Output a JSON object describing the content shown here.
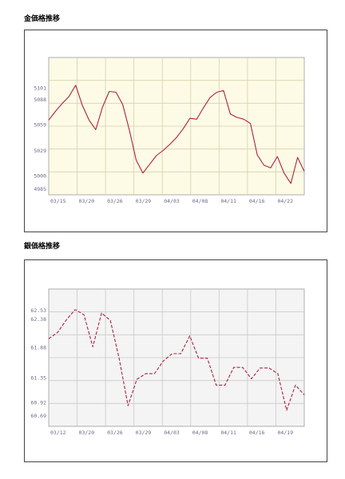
{
  "chart_data": [
    {
      "type": "line",
      "title": "金価格推移",
      "xlabel": "",
      "ylabel": "",
      "x_tick_labels": [
        "03/15",
        "03/20",
        "03/26",
        "03/29",
        "04/03",
        "04/08",
        "04/11",
        "04/16",
        "04/22"
      ],
      "y_ticks": [
        4985,
        5000,
        5029,
        5059,
        5088,
        5101
      ],
      "ylim": [
        4978,
        5136
      ],
      "grid": true,
      "series": [
        {
          "values": [
            5064,
            5074,
            5083,
            5091,
            5104,
            5081,
            5064,
            5053,
            5079,
            5097,
            5096,
            5082,
            5052,
            5018,
            5003,
            5013,
            5023,
            5029,
            5036,
            5044,
            5054,
            5066,
            5065,
            5078,
            5090,
            5096,
            5098,
            5071,
            5067,
            5065,
            5060,
            5024,
            5012,
            5009,
            5022,
            5003,
            4991,
            5021,
            5005
          ]
        }
      ],
      "colors": {
        "background": "#fdfbe6",
        "grid": "#d9cfae",
        "line": "#b22040",
        "frame": "#444444"
      }
    },
    {
      "type": "line",
      "title": "銀価格推移",
      "xlabel": "",
      "ylabel": "",
      "x_tick_labels": [
        "03/12",
        "03/20",
        "03/26",
        "03/29",
        "04/03",
        "04/08",
        "04/11",
        "04/16",
        "04/19"
      ],
      "y_ticks": [
        60.69,
        60.92,
        61.35,
        61.88,
        62.38,
        62.53
      ],
      "y_tick_display": [
        "60.69",
        "60.92",
        "61.35",
        "61.88",
        "62.38",
        "62.53"
      ],
      "ylim": [
        60.5,
        62.9
      ],
      "grid": true,
      "series": [
        {
          "values": [
            62.03,
            62.14,
            62.36,
            62.54,
            62.45,
            61.89,
            62.48,
            62.35,
            61.68,
            60.86,
            61.32,
            61.42,
            61.42,
            61.64,
            61.77,
            61.77,
            62.08,
            61.69,
            61.69,
            61.22,
            61.22,
            61.53,
            61.53,
            61.33,
            61.52,
            61.52,
            61.42,
            60.78,
            61.22,
            61.05
          ]
        }
      ],
      "colors": {
        "background": "#f4f4f4",
        "grid": "#c9c9c9",
        "line": "#b22040",
        "frame": "#444444"
      }
    }
  ]
}
